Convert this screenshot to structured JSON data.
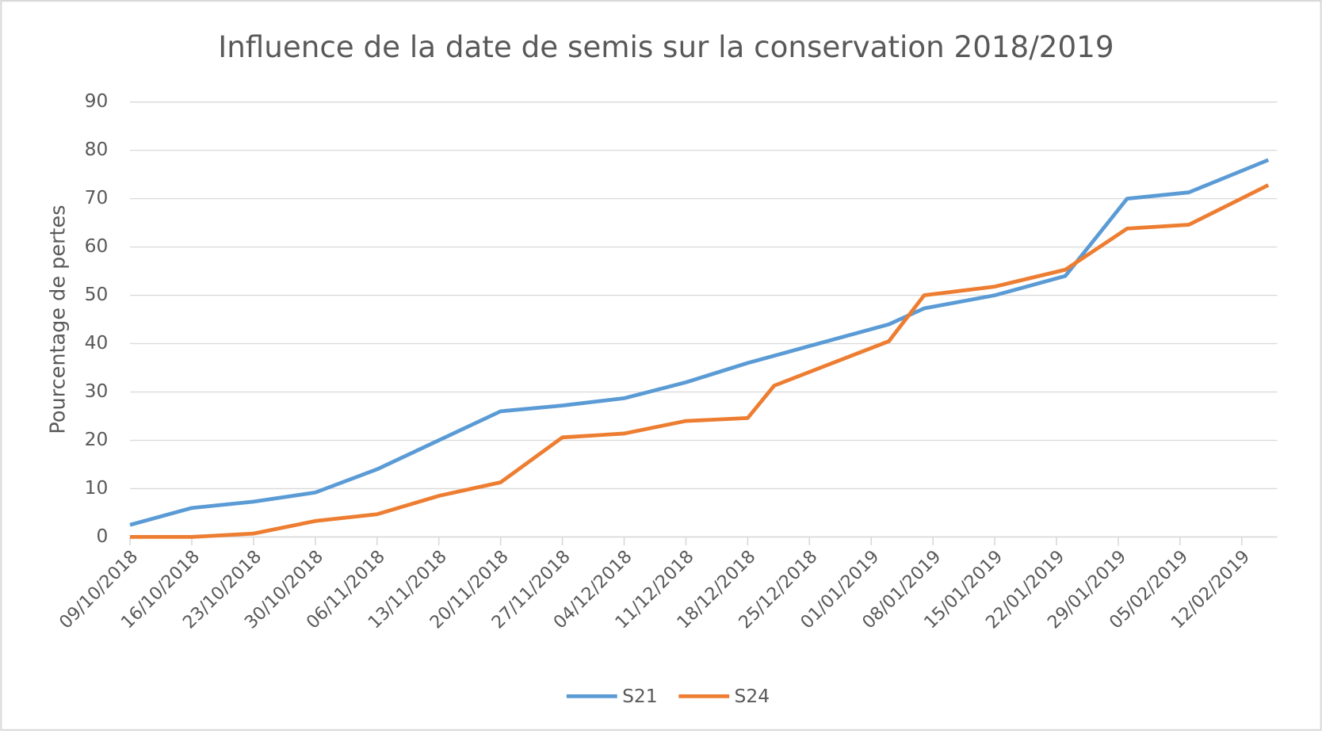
{
  "chart_data": {
    "type": "line",
    "title": "Influence de la date de semis sur la conservation 2018/2019",
    "y_label": "Pourcentage de pertes",
    "x": [
      "09/10/2018",
      "16/10/2018",
      "23/10/2018",
      "30/10/2018",
      "06/11/2018",
      "13/11/2018",
      "20/11/2018",
      "27/11/2018",
      "04/12/2018",
      "11/12/2018",
      "18/12/2018",
      "21/12/2018",
      "03/01/2019",
      "07/01/2019",
      "15/01/2019",
      "23/01/2019",
      "30/01/2019",
      "06/02/2019",
      "15/02/2019"
    ],
    "series": [
      {
        "name": "S21",
        "color": "#5b9bd5",
        "values": [
          2.5,
          6,
          7.3,
          9.2,
          14,
          20,
          26,
          27.2,
          28.7,
          32,
          36,
          37.5,
          44,
          47.3,
          50,
          54,
          70,
          71.3,
          78
        ]
      },
      {
        "name": "S24",
        "color": "#ed7d31",
        "values": [
          0,
          0,
          0.7,
          3.3,
          4.7,
          8.5,
          11.3,
          20.6,
          21.4,
          24,
          24.6,
          31.3,
          40.5,
          50,
          51.8,
          55.3,
          63.8,
          64.6,
          72.8
        ]
      }
    ],
    "xlim": [
      "09/10/2018",
      "16/02/2019"
    ],
    "xticks": [
      "09/10/2018",
      "16/10/2018",
      "23/10/2018",
      "30/10/2018",
      "06/11/2018",
      "13/11/2018",
      "20/11/2018",
      "27/11/2018",
      "04/12/2018",
      "11/12/2018",
      "18/12/2018",
      "25/12/2018",
      "01/01/2019",
      "08/01/2019",
      "15/01/2019",
      "22/01/2019",
      "29/01/2019",
      "05/02/2019",
      "12/02/2019"
    ],
    "ylim": [
      0,
      90
    ],
    "yticks": [
      0,
      10,
      20,
      30,
      40,
      50,
      60,
      70,
      80,
      90
    ],
    "grid": true,
    "legend": "bottom"
  }
}
